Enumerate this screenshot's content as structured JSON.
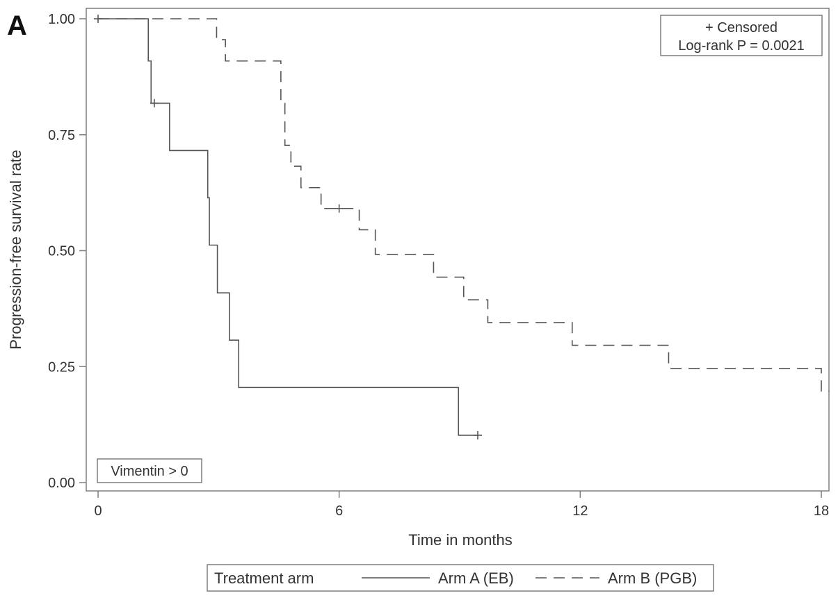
{
  "panel_label": "A",
  "chart_data": {
    "type": "line",
    "title": "",
    "xlabel": "Time in months",
    "ylabel": "Progression-free survival rate",
    "xlim": [
      0,
      18.2
    ],
    "ylim": [
      0,
      1.0
    ],
    "x_ticks": [
      0,
      6,
      12,
      18
    ],
    "x_tick_labels": [
      "0",
      "6",
      "12",
      "18"
    ],
    "y_ticks": [
      0,
      0.25,
      0.5,
      0.75,
      1.0
    ],
    "y_tick_labels": [
      "0.00",
      "0.25",
      "0.50",
      "0.75",
      "1.00"
    ],
    "grid": false,
    "legend_position": "bottom",
    "legend_title": "Treatment arm",
    "inset_box": {
      "line1": "+ Censored",
      "line2": "Log-rank P = 0.0021",
      "position": "top-right"
    },
    "subgroup_box": {
      "text": "Vimentin > 0",
      "position": "bottom-left"
    },
    "series": [
      {
        "name": "Arm A (EB)",
        "style": "solid",
        "color": "#555555",
        "steps": [
          [
            0,
            1.0
          ],
          [
            1.25,
            0.909
          ],
          [
            1.32,
            0.818
          ],
          [
            1.78,
            0.716
          ],
          [
            2.73,
            0.614
          ],
          [
            2.77,
            0.512
          ],
          [
            2.97,
            0.409
          ],
          [
            3.27,
            0.307
          ],
          [
            3.5,
            0.205
          ],
          [
            8.97,
            0.102
          ],
          [
            9.45,
            0.102
          ]
        ],
        "censored": [
          [
            1.4,
            0.818
          ],
          [
            9.45,
            0.102
          ]
        ]
      },
      {
        "name": "Arm B (PGB)",
        "style": "dashed",
        "color": "#555555",
        "steps": [
          [
            0,
            1.0
          ],
          [
            2.95,
            0.955
          ],
          [
            3.17,
            0.909
          ],
          [
            4.55,
            0.818
          ],
          [
            4.65,
            0.727
          ],
          [
            4.8,
            0.682
          ],
          [
            5.05,
            0.636
          ],
          [
            5.55,
            0.591
          ],
          [
            6.5,
            0.545
          ],
          [
            6.9,
            0.492
          ],
          [
            8.35,
            0.443
          ],
          [
            9.1,
            0.394
          ],
          [
            9.7,
            0.345
          ],
          [
            11.8,
            0.296
          ],
          [
            14.2,
            0.246
          ],
          [
            18.0,
            0.197
          ],
          [
            18.2,
            0.197
          ]
        ],
        "censored": [
          [
            0,
            1.0
          ],
          [
            6.0,
            0.591
          ]
        ]
      }
    ]
  }
}
